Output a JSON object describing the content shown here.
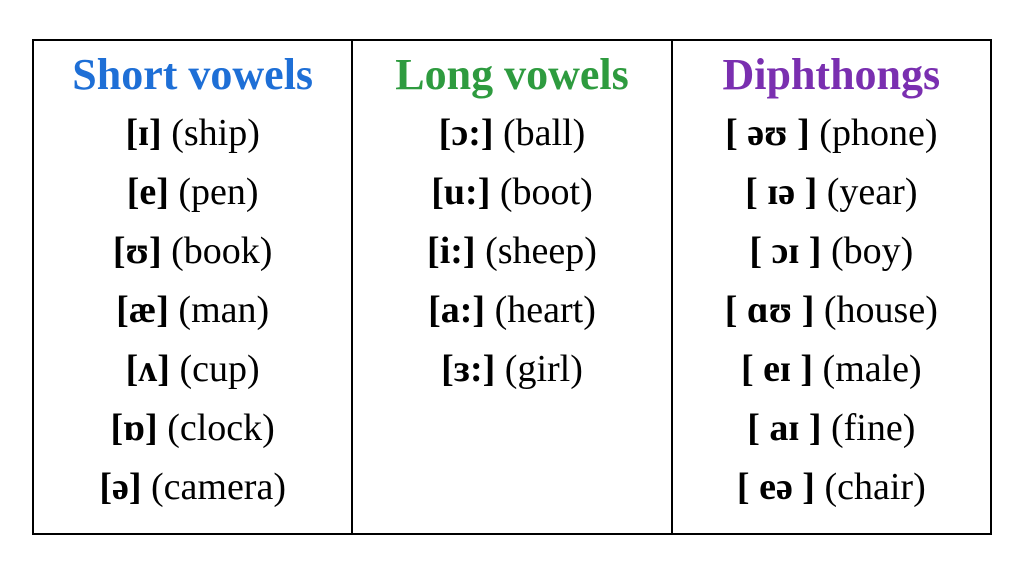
{
  "columns": [
    {
      "header": "Short vowels",
      "header_color": "#1e6fd6",
      "entries": [
        {
          "symbol": "[ɪ]",
          "word": "(ship)"
        },
        {
          "symbol": "[e]",
          "word": "(pen)"
        },
        {
          "symbol": "[ʊ]",
          "word": "(book)"
        },
        {
          "symbol": "[æ]",
          "word": "(man)"
        },
        {
          "symbol": "[ʌ]",
          "word": "(cup)"
        },
        {
          "symbol": "[ɒ]",
          "word": "(clock)"
        },
        {
          "symbol": "[ə]",
          "word": "(camera)"
        }
      ]
    },
    {
      "header": "Long vowels",
      "header_color": "#2e9b3f",
      "entries": [
        {
          "symbol": "[ɔ:]",
          "word": "(ball)"
        },
        {
          "symbol": "[u:]",
          "word": "(boot)"
        },
        {
          "symbol": "[i:]",
          "word": "(sheep)"
        },
        {
          "symbol": "[a:]",
          "word": "(heart)"
        },
        {
          "symbol": "[ɜ:]",
          "word": "(girl)"
        }
      ]
    },
    {
      "header": "Diphthongs",
      "header_color": "#7a2fb0",
      "entries": [
        {
          "symbol": "[ əʊ ]",
          "word": "(phone)"
        },
        {
          "symbol": "[ ɪə ]",
          "word": "(year)"
        },
        {
          "symbol": "[ ɔɪ ]",
          "word": "(boy)"
        },
        {
          "symbol": "[ ɑʊ ]",
          "word": "(house)"
        },
        {
          "symbol": "[ eɪ ]",
          "word": "(male)"
        },
        {
          "symbol": "[ aɪ ]",
          "word": "(fine)"
        },
        {
          "symbol": "[ eə ]",
          "word": "(chair)"
        }
      ]
    }
  ],
  "max_rows": 7
}
